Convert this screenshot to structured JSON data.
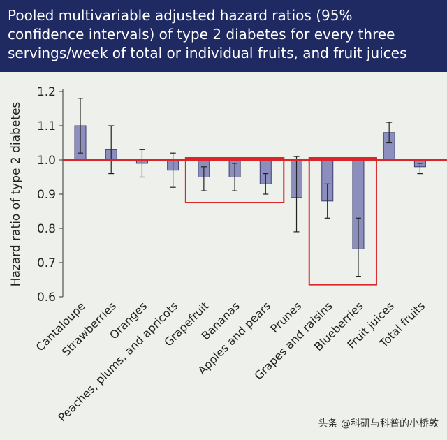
{
  "header": {
    "title_lines": [
      "Pooled multivariable adjusted hazard ratios (95%",
      "confidence intervals) of type 2 diabetes for every three",
      "servings/week of total or individual fruits, and fruit juices"
    ]
  },
  "watermark": "头条 @科研与科普的小桥敦",
  "colors": {
    "header_bg": "#1f2a63",
    "bar_fill": "#8c8fbe",
    "bar_stroke": "#3c3f6e",
    "reference_line": "#d8262b",
    "highlight_box": "#d8262b"
  },
  "chart_data": {
    "type": "bar",
    "title": "Pooled multivariable adjusted hazard ratios (95% confidence intervals) of type 2 diabetes for every three servings/week of total or individual fruits, and fruit juices",
    "ylabel": "Hazard ratio of type 2 diabetes",
    "xlabel": "",
    "ylim": [
      0.6,
      1.2
    ],
    "yticks": [
      "0.6",
      "0.7",
      "0.8",
      "0.9",
      "1.0",
      "1.1",
      "1.2"
    ],
    "reference_value": 1.0,
    "categories": [
      "Cantaloupe",
      "Strawberries",
      "Oranges",
      "Peaches, plums, and apricots",
      "Grapefruit",
      "Bananas",
      "Apples and pears",
      "Prunes",
      "Grapes and raisins",
      "Blueberries",
      "Fruit juices",
      "Total fruits"
    ],
    "values": [
      1.1,
      1.03,
      0.99,
      0.97,
      0.95,
      0.95,
      0.93,
      0.89,
      0.88,
      0.74,
      1.08,
      0.98
    ],
    "ci_low": [
      1.02,
      0.96,
      0.95,
      0.92,
      0.91,
      0.91,
      0.9,
      0.79,
      0.83,
      0.66,
      1.05,
      0.96
    ],
    "ci_high": [
      1.18,
      1.1,
      1.03,
      1.02,
      0.98,
      0.99,
      0.96,
      1.01,
      0.93,
      0.83,
      1.11,
      0.99
    ],
    "highlight_groups": [
      [
        "Grapefruit",
        "Bananas",
        "Apples and pears"
      ],
      [
        "Grapes and raisins",
        "Blueberries"
      ]
    ],
    "grid": false
  }
}
